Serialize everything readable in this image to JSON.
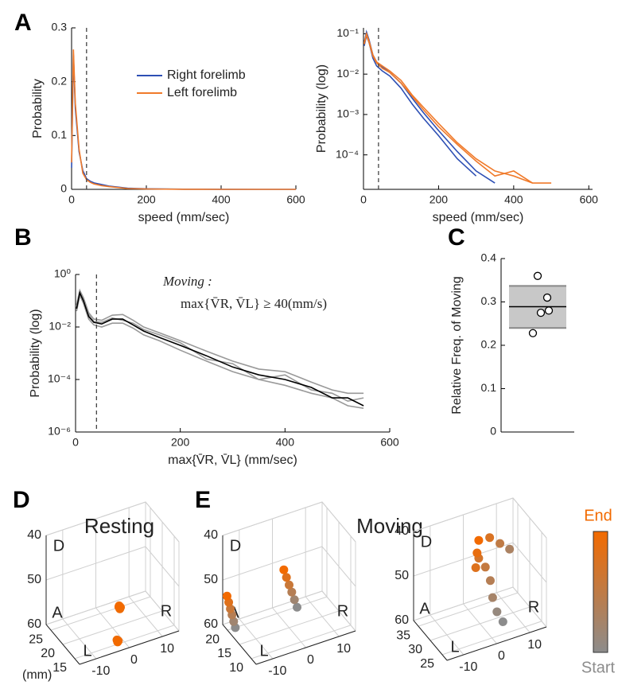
{
  "chart_data": [
    {
      "type": "line",
      "panel": "A",
      "xlabel": "speed (mm/sec)",
      "ylabel": "Probability",
      "xlim": [
        0,
        600
      ],
      "ylim": [
        0,
        0.3
      ],
      "xticks": [
        0,
        200,
        400,
        600
      ],
      "yticks": [
        0,
        0.1,
        0.2,
        0.3
      ],
      "threshold": 40,
      "legend": "upper right",
      "x": [
        0,
        5,
        10,
        20,
        30,
        40,
        50,
        60,
        80,
        100,
        150,
        200,
        300,
        400,
        500,
        600
      ],
      "series": [
        {
          "name": "Right forelimb",
          "color": "#2d4fb4",
          "values": [
            0.04,
            0.25,
            0.15,
            0.07,
            0.035,
            0.02,
            0.015,
            0.012,
            0.009,
            0.006,
            0.002,
            0.001,
            0.0003,
            0.0001,
            3e-05,
            0
          ]
        },
        {
          "name": "Left forelimb",
          "color": "#f07a2a",
          "values": [
            0.05,
            0.26,
            0.16,
            0.075,
            0.03,
            0.018,
            0.013,
            0.01,
            0.007,
            0.005,
            0.0015,
            0.0007,
            0.0002,
            5e-05,
            0,
            0
          ]
        }
      ]
    },
    {
      "type": "line",
      "yscale": "log",
      "xlabel": "speed (mm/sec)",
      "ylabel": "Probability (log)",
      "xlim": [
        0,
        610
      ],
      "ylim": [
        1.4e-05,
        0.14
      ],
      "xticks": [
        0,
        200,
        400,
        600
      ],
      "yticks": [
        {
          "value": 0.1,
          "label": "10⁻¹"
        },
        {
          "value": 0.01,
          "label": "10⁻²"
        },
        {
          "value": 0.001,
          "label": "10⁻³"
        },
        {
          "value": 0.0001,
          "label": "10⁻⁴"
        }
      ],
      "threshold": 40,
      "x": [
        2,
        8,
        15,
        25,
        35,
        50,
        70,
        100,
        130,
        160,
        200,
        250,
        300,
        350,
        400,
        450,
        500,
        550
      ],
      "series": [
        {
          "color": "#2d4fb4",
          "values": [
            0.06,
            0.11,
            0.07,
            0.03,
            0.02,
            0.015,
            0.011,
            0.006,
            0.0025,
            0.0011,
            0.0004,
            0.00012,
            4e-05,
            2e-05,
            null,
            null,
            null,
            null
          ]
        },
        {
          "color": "#2d4fb4",
          "values": [
            0.05,
            0.09,
            0.06,
            0.025,
            0.016,
            0.012,
            0.009,
            0.0045,
            0.0018,
            0.0008,
            0.0003,
            8e-05,
            3e-05,
            null,
            2e-05,
            null,
            null,
            2e-05
          ]
        },
        {
          "color": "#f07a2a",
          "values": [
            0.06,
            0.1,
            0.065,
            0.03,
            0.02,
            0.016,
            0.012,
            0.007,
            0.003,
            0.0015,
            0.0006,
            0.0002,
            8e-05,
            4e-05,
            3e-05,
            2e-05,
            2e-05,
            null
          ]
        },
        {
          "color": "#f07a2a",
          "values": [
            0.055,
            0.095,
            0.06,
            0.028,
            0.019,
            0.014,
            0.011,
            0.006,
            0.0028,
            0.0013,
            0.0005,
            0.00018,
            7e-05,
            3e-05,
            4e-05,
            2e-05,
            null,
            null
          ]
        }
      ]
    },
    {
      "type": "line",
      "panel": "B",
      "yscale": "log",
      "xlabel": "max{V̄R, V̄L}  (mm/sec)",
      "ylabel": "Probability (log)",
      "annotation": [
        "Moving :",
        "max{V̄R, V̄L} ≥ 40(mm/s)"
      ],
      "xlim": [
        0,
        600
      ],
      "ylim": [
        1e-06,
        1
      ],
      "xticks": [
        0,
        200,
        400,
        600
      ],
      "yticks": [
        {
          "value": 1,
          "label": "10⁰"
        },
        {
          "value": 0.01,
          "label": "10⁻²"
        },
        {
          "value": 0.0001,
          "label": "10⁻⁴"
        },
        {
          "value": 1e-06,
          "label": "10⁻⁶"
        }
      ],
      "threshold": 40,
      "x": [
        2,
        8,
        15,
        25,
        35,
        50,
        70,
        90,
        110,
        130,
        160,
        200,
        250,
        300,
        350,
        400,
        450,
        490,
        520,
        550
      ],
      "series": [
        {
          "color": "#999999",
          "values": [
            0.07,
            0.25,
            0.13,
            0.035,
            0.02,
            0.018,
            0.028,
            0.03,
            0.018,
            0.01,
            0.006,
            0.003,
            0.0012,
            0.0005,
            0.00025,
            0.0002,
            8e-05,
            4e-05,
            3e-05,
            3e-05
          ]
        },
        {
          "color": "#999999",
          "values": [
            0.04,
            0.16,
            0.08,
            0.02,
            0.012,
            0.01,
            0.014,
            0.014,
            0.009,
            0.005,
            0.003,
            0.0013,
            0.0005,
            0.0002,
            0.0001,
            6e-05,
            3e-05,
            2e-05,
            1e-05,
            8e-06
          ]
        },
        {
          "color": "#999999",
          "values": [
            0.05,
            0.22,
            0.11,
            0.03,
            0.016,
            0.015,
            0.022,
            0.018,
            0.014,
            0.008,
            0.005,
            0.0025,
            0.0006,
            0.0004,
            0.0001,
            0.00015,
            4e-05,
            3e-05,
            1.5e-05,
            2e-05
          ]
        },
        {
          "color": "#000000",
          "values": [
            0.05,
            0.2,
            0.1,
            0.025,
            0.015,
            0.013,
            0.02,
            0.02,
            0.012,
            0.007,
            0.004,
            0.002,
            0.0008,
            0.0003,
            0.00015,
            0.0001,
            5e-05,
            2e-05,
            2e-05,
            1e-05
          ]
        }
      ]
    },
    {
      "type": "strip",
      "panel": "C",
      "ylabel": "Relative Freq. of Moving",
      "ylim": [
        0,
        0.4
      ],
      "yticks": [
        0,
        0.1,
        0.2,
        0.3,
        0.4
      ],
      "values": [
        0.36,
        0.31,
        0.275,
        0.28,
        0.228
      ],
      "mean": 0.289,
      "band": [
        0.24,
        0.337
      ]
    },
    {
      "type": "scatter3d",
      "panel": "D",
      "title": "Resting",
      "unit": "(mm)",
      "axis_letters": [
        "D",
        "A",
        "R",
        "L"
      ],
      "xlim": [
        -15,
        15
      ],
      "ylim": [
        13,
        27
      ],
      "zlim": [
        40,
        60
      ],
      "z_reversed": true,
      "xticks": [
        -10,
        0,
        10
      ],
      "yticks": [
        15,
        20,
        25
      ],
      "zticks": [
        40,
        50,
        60
      ],
      "colormap": [
        "#8c8c8c",
        "#f26a00"
      ],
      "points": {
        "x": [
          2.0,
          2.4,
          2.2,
          1.9,
          -2.7,
          -2.3,
          -2.5
        ],
        "y": [
          20,
          20,
          20,
          20,
          14.4,
          14.4,
          14.4
        ],
        "z": [
          55.6,
          56.0,
          56.3,
          55.8,
          58.5,
          58.8,
          59.0
        ],
        "t": [
          0.95,
          1,
          0.95,
          1,
          0.95,
          1,
          1
        ]
      }
    },
    {
      "type": "scatter3d",
      "panel": "E",
      "title": "Moving",
      "axis_letters": [
        "D",
        "A",
        "R",
        "L"
      ],
      "xlim": [
        -15,
        15
      ],
      "ylim": [
        8,
        22
      ],
      "zlim": [
        40,
        60
      ],
      "z_reversed": true,
      "xticks": [
        -10,
        0,
        10
      ],
      "yticks": [
        10,
        15,
        20
      ],
      "zticks": [
        40,
        50,
        60
      ],
      "colormap": [
        "#8c8c8c",
        "#f26a00"
      ],
      "points": {
        "x": [
          2.4,
          1.6,
          0.8,
          0,
          -0.8,
          -1.6,
          -12.2,
          -12.7,
          -13.2,
          -13.7,
          -14.2,
          -14.7
        ],
        "y": [
          15,
          15,
          15,
          15,
          15,
          15,
          20.6,
          20.6,
          20.6,
          20.6,
          20.6,
          20.6
        ],
        "z": [
          56,
          54.1,
          52.2,
          50.4,
          48.5,
          46.6,
          60.5,
          59,
          57.4,
          55.9,
          54.3,
          52.8
        ],
        "t": [
          0,
          0.2,
          0.4,
          0.6,
          0.8,
          1,
          0,
          0.2,
          0.4,
          0.6,
          0.8,
          1
        ]
      }
    },
    {
      "type": "scatter3d",
      "axis_letters": [
        "D",
        "A",
        "R",
        "L"
      ],
      "xlim": [
        -15,
        15
      ],
      "ylim": [
        23,
        37
      ],
      "zlim": [
        40,
        60
      ],
      "z_reversed": true,
      "xticks": [
        -10,
        0,
        10
      ],
      "yticks": [
        25,
        30,
        35
      ],
      "zticks": [
        40,
        50,
        60
      ],
      "colormap": [
        "#8c8c8c",
        "#f26a00"
      ],
      "colorbar_labels": [
        "End",
        "Start"
      ],
      "points": {
        "x": [
          4.9,
          3.1,
          1.8,
          1.1,
          -0.4,
          -2.4,
          -3.3,
          -2.9,
          -2.4,
          0.9,
          4.0,
          6.9
        ],
        "y": [
          27.2,
          27.2,
          27.2,
          27.2,
          27.2,
          27.2,
          27.2,
          27.2,
          27.2,
          27.2,
          27.2,
          27.2
        ],
        "z": [
          59.0,
          56.3,
          52.8,
          48.8,
          45.4,
          42.9,
          44.8,
          41.6,
          38.9,
          39.1,
          41.2,
          43.2
        ],
        "t": [
          0,
          0.1,
          0.25,
          0.4,
          0.55,
          0.7,
          0.8,
          0.9,
          1,
          0.75,
          0.5,
          0.3
        ]
      }
    }
  ]
}
